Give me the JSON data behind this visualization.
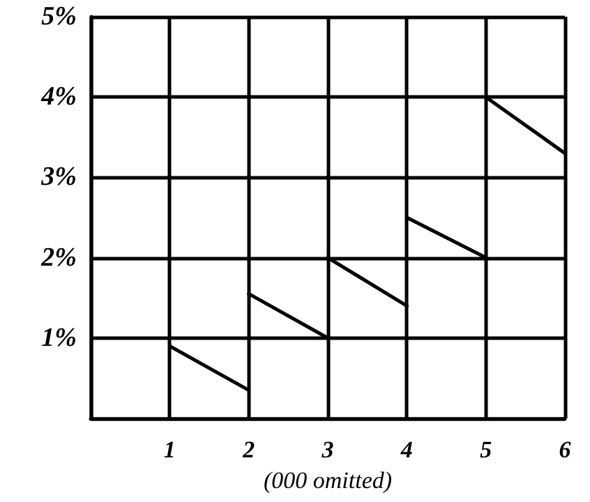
{
  "chart_data": {
    "type": "line",
    "xlabel": "(000 omitted)",
    "xlim": [
      0,
      6
    ],
    "xticks": [
      {
        "value": 0,
        "label": null
      },
      1,
      2,
      3,
      4,
      5,
      6
    ],
    "ylim": [
      0,
      5
    ],
    "yticks": [
      {
        "value": 0,
        "label": null
      },
      {
        "value": 1,
        "label": "1%"
      },
      {
        "value": 2,
        "label": "2%"
      },
      {
        "value": 3,
        "label": "3%"
      },
      {
        "value": 4,
        "label": "4%"
      },
      {
        "value": 5,
        "label": "5%"
      }
    ],
    "grid": true,
    "marker": "none",
    "line_style": "solid",
    "series": [
      {
        "color": "#000000",
        "x": [
          1,
          2
        ],
        "values": [
          0.9,
          0.35
        ]
      },
      {
        "color": "#000000",
        "x": [
          2,
          3
        ],
        "values": [
          1.55,
          1.0
        ]
      },
      {
        "color": "#000000",
        "x": [
          3,
          4
        ],
        "values": [
          2.0,
          1.4
        ]
      },
      {
        "color": "#000000",
        "x": [
          4,
          5
        ],
        "values": [
          2.5,
          2.0
        ]
      },
      {
        "color": "#000000",
        "x": [
          5,
          6
        ],
        "values": [
          4.0,
          3.3
        ]
      }
    ]
  }
}
